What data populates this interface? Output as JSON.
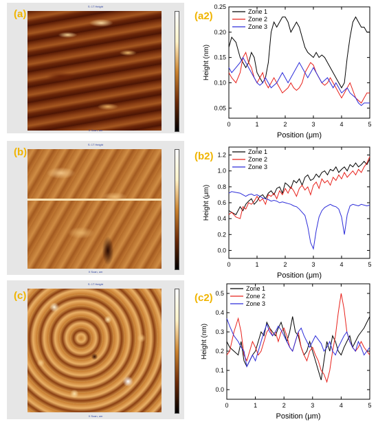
{
  "panels": {
    "a": {
      "label": "(a)",
      "image_title": "S: 1T Height",
      "image_xlabel": "X Scan, um"
    },
    "b": {
      "label": "(b)",
      "image_title": "S: 1T Height",
      "image_xlabel": "X Scan, um"
    },
    "c": {
      "label": "(c)",
      "image_title": "S: 1T Height",
      "image_xlabel": "X Scan, um"
    }
  },
  "colors": {
    "zone1": "#000000",
    "zone2": "#e8201a",
    "zone3": "#2b2bd9",
    "panel_label": "#f0b400"
  },
  "chart_data": [
    {
      "id": "a2",
      "label": "(a2)",
      "type": "line",
      "xlabel": "Position (μm)",
      "ylabel": "Height (nm)",
      "xlim": [
        0,
        5
      ],
      "ylim": [
        0.03,
        0.25
      ],
      "xticks": [
        0,
        1,
        2,
        3,
        4,
        5
      ],
      "yticks": [
        0.05,
        0.1,
        0.15,
        0.2,
        0.25
      ],
      "ytick_labels": [
        "0.05",
        "0.10",
        "0.15",
        "0.20",
        "0.25"
      ],
      "legend_position": "top-left",
      "x": [
        0,
        0.1,
        0.25,
        0.4,
        0.5,
        0.6,
        0.7,
        0.8,
        0.9,
        1.0,
        1.1,
        1.2,
        1.3,
        1.4,
        1.5,
        1.6,
        1.7,
        1.8,
        1.9,
        2.0,
        2.1,
        2.2,
        2.3,
        2.4,
        2.5,
        2.6,
        2.7,
        2.8,
        2.9,
        3.0,
        3.1,
        3.2,
        3.3,
        3.4,
        3.5,
        3.6,
        3.7,
        3.8,
        3.9,
        4.0,
        4.1,
        4.2,
        4.3,
        4.4,
        4.5,
        4.6,
        4.7,
        4.8,
        4.9,
        5.0
      ],
      "series": [
        {
          "name": "Zone 1",
          "values": [
            0.17,
            0.19,
            0.18,
            0.15,
            0.14,
            0.13,
            0.14,
            0.16,
            0.15,
            0.12,
            0.11,
            0.1,
            0.11,
            0.14,
            0.2,
            0.22,
            0.21,
            0.22,
            0.23,
            0.23,
            0.22,
            0.2,
            0.21,
            0.22,
            0.21,
            0.19,
            0.17,
            0.16,
            0.155,
            0.15,
            0.16,
            0.15,
            0.155,
            0.15,
            0.14,
            0.13,
            0.12,
            0.11,
            0.1,
            0.09,
            0.1,
            0.15,
            0.19,
            0.22,
            0.23,
            0.22,
            0.21,
            0.21,
            0.2,
            0.2
          ]
        },
        {
          "name": "Zone 2",
          "values": [
            0.12,
            0.11,
            0.1,
            0.12,
            0.15,
            0.16,
            0.14,
            0.13,
            0.11,
            0.1,
            0.11,
            0.12,
            0.1,
            0.09,
            0.1,
            0.11,
            0.1,
            0.09,
            0.08,
            0.085,
            0.09,
            0.1,
            0.09,
            0.085,
            0.09,
            0.1,
            0.12,
            0.13,
            0.14,
            0.135,
            0.12,
            0.11,
            0.1,
            0.095,
            0.1,
            0.11,
            0.1,
            0.09,
            0.08,
            0.07,
            0.08,
            0.09,
            0.1,
            0.085,
            0.07,
            0.065,
            0.06,
            0.07,
            0.08,
            0.08
          ]
        },
        {
          "name": "Zone 3",
          "values": [
            0.13,
            0.12,
            0.13,
            0.14,
            0.15,
            0.14,
            0.13,
            0.12,
            0.11,
            0.1,
            0.095,
            0.1,
            0.11,
            0.1,
            0.09,
            0.095,
            0.1,
            0.11,
            0.12,
            0.11,
            0.1,
            0.11,
            0.12,
            0.13,
            0.14,
            0.13,
            0.12,
            0.11,
            0.12,
            0.13,
            0.12,
            0.11,
            0.1,
            0.105,
            0.11,
            0.1,
            0.09,
            0.1,
            0.09,
            0.08,
            0.085,
            0.09,
            0.08,
            0.075,
            0.07,
            0.06,
            0.055,
            0.06,
            0.06,
            0.06
          ]
        }
      ]
    },
    {
      "id": "b2",
      "label": "(b2)",
      "type": "line",
      "xlabel": "Position (μm)",
      "ylabel": "Height (μm)",
      "xlim": [
        0,
        5
      ],
      "ylim": [
        -0.1,
        1.3
      ],
      "xticks": [
        0,
        1,
        2,
        3,
        4,
        5
      ],
      "yticks": [
        0.0,
        0.2,
        0.4,
        0.6,
        0.8,
        1.0,
        1.2
      ],
      "ytick_labels": [
        "0.0",
        "0.2",
        "0.4",
        "0.6",
        "0.8",
        "1.0",
        "1.2"
      ],
      "legend_position": "top-left",
      "x": [
        0,
        0.1,
        0.25,
        0.4,
        0.5,
        0.6,
        0.7,
        0.8,
        0.9,
        1.0,
        1.1,
        1.2,
        1.3,
        1.4,
        1.5,
        1.6,
        1.7,
        1.8,
        1.9,
        2.0,
        2.1,
        2.2,
        2.3,
        2.4,
        2.5,
        2.6,
        2.7,
        2.8,
        2.9,
        3.0,
        3.1,
        3.2,
        3.3,
        3.4,
        3.5,
        3.6,
        3.7,
        3.8,
        3.9,
        4.0,
        4.1,
        4.2,
        4.3,
        4.4,
        4.5,
        4.6,
        4.7,
        4.8,
        4.9,
        5.0
      ],
      "series": [
        {
          "name": "Zone 1",
          "values": [
            0.5,
            0.48,
            0.45,
            0.55,
            0.5,
            0.58,
            0.62,
            0.65,
            0.58,
            0.62,
            0.68,
            0.7,
            0.65,
            0.72,
            0.75,
            0.7,
            0.78,
            0.8,
            0.72,
            0.85,
            0.82,
            0.78,
            0.88,
            0.85,
            0.9,
            0.82,
            0.92,
            0.95,
            0.88,
            0.9,
            0.96,
            0.92,
            0.98,
            1.0,
            0.95,
            1.02,
            1.0,
            1.05,
            0.98,
            1.02,
            1.05,
            1.0,
            1.08,
            1.05,
            1.1,
            1.05,
            1.08,
            1.12,
            1.08,
            1.15
          ]
        },
        {
          "name": "Zone 2",
          "values": [
            0.45,
            0.48,
            0.42,
            0.4,
            0.55,
            0.52,
            0.6,
            0.58,
            0.62,
            0.68,
            0.62,
            0.65,
            0.58,
            0.7,
            0.68,
            0.72,
            0.65,
            0.75,
            0.7,
            0.78,
            0.72,
            0.8,
            0.75,
            0.68,
            0.78,
            0.82,
            0.76,
            0.8,
            0.7,
            0.82,
            0.86,
            0.78,
            0.9,
            0.85,
            0.88,
            0.82,
            0.92,
            0.88,
            0.95,
            0.9,
            0.98,
            0.92,
            0.96,
            1.0,
            0.95,
            1.02,
            0.98,
            1.05,
            1.1,
            1.18
          ]
        },
        {
          "name": "Zone 3",
          "values": [
            0.72,
            0.74,
            0.73,
            0.72,
            0.7,
            0.68,
            0.7,
            0.71,
            0.69,
            0.7,
            0.68,
            0.66,
            0.65,
            0.64,
            0.62,
            0.63,
            0.62,
            0.6,
            0.61,
            0.6,
            0.59,
            0.58,
            0.56,
            0.55,
            0.52,
            0.48,
            0.44,
            0.3,
            0.1,
            0.02,
            0.25,
            0.42,
            0.5,
            0.54,
            0.56,
            0.58,
            0.56,
            0.55,
            0.52,
            0.42,
            0.2,
            0.45,
            0.56,
            0.58,
            0.57,
            0.56,
            0.58,
            0.57,
            0.56,
            0.57
          ]
        }
      ]
    },
    {
      "id": "c2",
      "label": "(c2)",
      "type": "line",
      "xlabel": "Position (μm)",
      "ylabel": "Height (nm)",
      "xlim": [
        0,
        5
      ],
      "ylim": [
        -0.05,
        0.55
      ],
      "xticks": [
        0,
        1,
        2,
        3,
        4,
        5
      ],
      "yticks": [
        0.0,
        0.1,
        0.2,
        0.3,
        0.4,
        0.5
      ],
      "ytick_labels": [
        "0.0",
        "0.1",
        "0.2",
        "0.3",
        "0.4",
        "0.5"
      ],
      "legend_position": "top-left",
      "x": [
        0,
        0.1,
        0.25,
        0.4,
        0.5,
        0.6,
        0.7,
        0.8,
        0.9,
        1.0,
        1.1,
        1.2,
        1.3,
        1.4,
        1.5,
        1.6,
        1.7,
        1.8,
        1.9,
        2.0,
        2.1,
        2.2,
        2.3,
        2.4,
        2.5,
        2.6,
        2.7,
        2.8,
        2.9,
        3.0,
        3.1,
        3.2,
        3.3,
        3.4,
        3.5,
        3.6,
        3.7,
        3.8,
        3.9,
        4.0,
        4.1,
        4.2,
        4.3,
        4.4,
        4.5,
        4.6,
        4.7,
        4.8,
        4.9,
        5.0
      ],
      "series": [
        {
          "name": "Zone 1",
          "values": [
            0.25,
            0.22,
            0.2,
            0.18,
            0.25,
            0.15,
            0.12,
            0.15,
            0.18,
            0.2,
            0.25,
            0.3,
            0.28,
            0.35,
            0.32,
            0.3,
            0.28,
            0.32,
            0.35,
            0.3,
            0.25,
            0.3,
            0.38,
            0.3,
            0.28,
            0.22,
            0.18,
            0.2,
            0.25,
            0.2,
            0.15,
            0.1,
            0.05,
            0.15,
            0.25,
            0.2,
            0.28,
            0.25,
            0.2,
            0.18,
            0.22,
            0.25,
            0.28,
            0.22,
            0.25,
            0.28,
            0.3,
            0.32,
            0.35,
            0.38
          ]
        },
        {
          "name": "Zone 2",
          "values": [
            0.18,
            0.2,
            0.3,
            0.37,
            0.3,
            0.18,
            0.15,
            0.2,
            0.25,
            0.22,
            0.18,
            0.2,
            0.25,
            0.3,
            0.32,
            0.28,
            0.3,
            0.25,
            0.3,
            0.32,
            0.28,
            0.22,
            0.2,
            0.25,
            0.3,
            0.22,
            0.18,
            0.15,
            0.2,
            0.22,
            0.18,
            0.15,
            0.1,
            0.08,
            0.04,
            0.1,
            0.2,
            0.28,
            0.4,
            0.5,
            0.42,
            0.3,
            0.25,
            0.22,
            0.2,
            0.22,
            0.25,
            0.22,
            0.2,
            0.18
          ]
        },
        {
          "name": "Zone 3",
          "values": [
            0.37,
            0.33,
            0.28,
            0.25,
            0.22,
            0.2,
            0.12,
            0.15,
            0.18,
            0.15,
            0.2,
            0.25,
            0.3,
            0.34,
            0.3,
            0.28,
            0.3,
            0.33,
            0.31,
            0.28,
            0.25,
            0.22,
            0.2,
            0.25,
            0.3,
            0.32,
            0.28,
            0.25,
            0.22,
            0.25,
            0.28,
            0.26,
            0.24,
            0.2,
            0.22,
            0.25,
            0.2,
            0.18,
            0.22,
            0.25,
            0.28,
            0.3,
            0.25,
            0.22,
            0.2,
            0.25,
            0.22,
            0.18,
            0.2,
            0.22
          ]
        }
      ]
    }
  ]
}
